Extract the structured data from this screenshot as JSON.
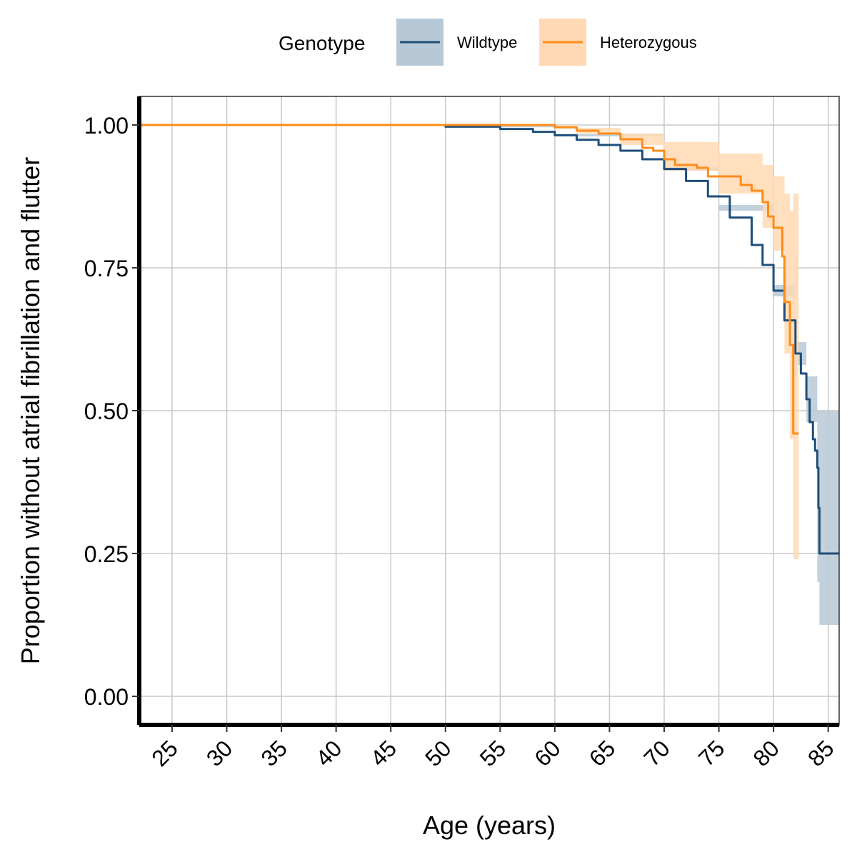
{
  "chart_data": {
    "type": "line",
    "subtype": "kaplan-meier step curve with confidence bands",
    "xlabel": "Age (years)",
    "ylabel": "Proportion without atrial fibrillation and flutter",
    "xlim": [
      22,
      86
    ],
    "ylim": [
      -0.05,
      1.05
    ],
    "x_ticks": [
      "25",
      "30",
      "35",
      "40",
      "45",
      "50",
      "55",
      "60",
      "65",
      "70",
      "75",
      "80",
      "85"
    ],
    "y_ticks": [
      "0.00",
      "0.25",
      "0.50",
      "0.75",
      "1.00"
    ],
    "grid": true,
    "legend": {
      "title": "Genotype",
      "position": "top",
      "entries": [
        "Wildtype",
        "Heterozygous"
      ]
    },
    "series": [
      {
        "name": "Wildtype",
        "color": "#1f4e79",
        "band_color": "#b7c9d6",
        "points": [
          [
            22,
            1.0
          ],
          [
            45,
            1.0
          ],
          [
            50,
            0.997
          ],
          [
            55,
            0.993
          ],
          [
            58,
            0.988
          ],
          [
            60,
            0.982
          ],
          [
            62,
            0.974
          ],
          [
            64,
            0.965
          ],
          [
            66,
            0.955
          ],
          [
            68,
            0.94
          ],
          [
            70,
            0.923
          ],
          [
            72,
            0.902
          ],
          [
            74,
            0.875
          ],
          [
            76,
            0.838
          ],
          [
            78,
            0.79
          ],
          [
            79,
            0.755
          ],
          [
            80,
            0.71
          ],
          [
            81,
            0.658
          ],
          [
            82,
            0.6
          ],
          [
            82.5,
            0.565
          ],
          [
            83,
            0.52
          ],
          [
            83.3,
            0.48
          ],
          [
            83.6,
            0.45
          ],
          [
            83.8,
            0.43
          ],
          [
            84,
            0.4
          ],
          [
            84.1,
            0.33
          ],
          [
            84.2,
            0.25
          ],
          [
            86,
            0.25
          ]
        ],
        "band_lower": [
          [
            22,
            1.0
          ],
          [
            50,
            0.996
          ],
          [
            60,
            0.98
          ],
          [
            70,
            0.92
          ],
          [
            75,
            0.85
          ],
          [
            80,
            0.7
          ],
          [
            82,
            0.58
          ],
          [
            83,
            0.48
          ],
          [
            84,
            0.2
          ],
          [
            84.2,
            0.125
          ],
          [
            86,
            0.125
          ]
        ],
        "band_upper": [
          [
            22,
            1.0
          ],
          [
            50,
            0.998
          ],
          [
            60,
            0.984
          ],
          [
            70,
            0.926
          ],
          [
            75,
            0.86
          ],
          [
            80,
            0.72
          ],
          [
            82,
            0.62
          ],
          [
            83,
            0.56
          ],
          [
            84,
            0.5
          ],
          [
            86,
            0.5
          ]
        ]
      },
      {
        "name": "Heterozygous",
        "color": "#ff8c1a",
        "band_color": "#ffd9b3",
        "points": [
          [
            22,
            1.0
          ],
          [
            58,
            1.0
          ],
          [
            60,
            0.996
          ],
          [
            62,
            0.99
          ],
          [
            64,
            0.985
          ],
          [
            66,
            0.975
          ],
          [
            68,
            0.96
          ],
          [
            69,
            0.955
          ],
          [
            70,
            0.94
          ],
          [
            71,
            0.93
          ],
          [
            73,
            0.925
          ],
          [
            74,
            0.91
          ],
          [
            77,
            0.895
          ],
          [
            78,
            0.885
          ],
          [
            79,
            0.865
          ],
          [
            79.5,
            0.84
          ],
          [
            80,
            0.82
          ],
          [
            80.8,
            0.77
          ],
          [
            81,
            0.69
          ],
          [
            81.5,
            0.615
          ],
          [
            81.8,
            0.46
          ],
          [
            82.3,
            0.46
          ]
        ],
        "band_lower": [
          [
            22,
            1.0
          ],
          [
            58,
            0.998
          ],
          [
            62,
            0.985
          ],
          [
            66,
            0.965
          ],
          [
            70,
            0.92
          ],
          [
            75,
            0.88
          ],
          [
            79,
            0.82
          ],
          [
            80,
            0.78
          ],
          [
            81,
            0.6
          ],
          [
            81.5,
            0.45
          ],
          [
            81.8,
            0.24
          ],
          [
            82.3,
            0.24
          ]
        ],
        "band_upper": [
          [
            22,
            1.0
          ],
          [
            58,
            1.0
          ],
          [
            62,
            0.995
          ],
          [
            66,
            0.985
          ],
          [
            70,
            0.97
          ],
          [
            75,
            0.95
          ],
          [
            79,
            0.93
          ],
          [
            80,
            0.91
          ],
          [
            81,
            0.88
          ],
          [
            81.5,
            0.85
          ],
          [
            81.8,
            0.88
          ],
          [
            82.3,
            0.88
          ]
        ]
      }
    ]
  }
}
